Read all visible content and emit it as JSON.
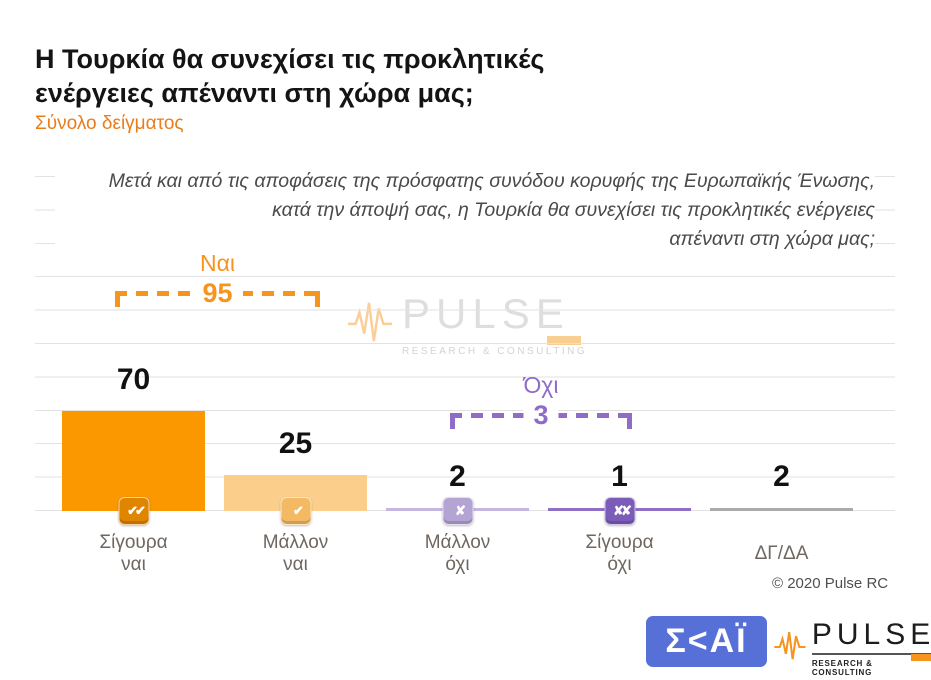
{
  "header": {
    "title_line1": "Η Τουρκία θα συνεχίσει τις προκλητικές",
    "title_line2": "ενέργειες απέναντι στη χώρα μας;",
    "subtitle": "Σύνολο δείγματος"
  },
  "question": {
    "line1": "Μετά και από τις αποφάσεις της πρόσφατης συνόδου κορυφής της Ευρωπαϊκής Ένωσης,",
    "line2": "κατά την άποψή σας, η Τουρκία θα συνεχίσει τις προκλητικές ενέργειες",
    "line3": "απέναντι στη χώρα μας;"
  },
  "chart_data": {
    "type": "bar",
    "title": "Η Τουρκία θα συνεχίσει τις προκλητικές ενέργειες απέναντι στη χώρα μας;",
    "subtitle": "Σύνολο δείγματος",
    "categories": [
      "Σίγουρα ναι",
      "Μάλλον ναι",
      "Μάλλον όχι",
      "Σίγουρα όχι",
      "ΔΓ/ΔΑ"
    ],
    "values": [
      70,
      25,
      2,
      1,
      2
    ],
    "ylim": [
      0,
      100
    ],
    "grid": true,
    "legend": "none",
    "bars": [
      {
        "label_line1": "Σίγουρα",
        "label_line2": "ναι",
        "value": 70,
        "color": "#FB9800",
        "icon_name": "double-check-icon",
        "icon_glyph": "✔✔",
        "icon_bg": "#E08500"
      },
      {
        "label_line1": "Μάλλον",
        "label_line2": "ναι",
        "value": 25,
        "color": "#FBCF8B",
        "icon_name": "check-icon",
        "icon_glyph": "✔",
        "icon_bg": "#F3BA63"
      },
      {
        "label_line1": "Μάλλον",
        "label_line2": "όχι",
        "value": 2,
        "color": "#C5B7DF",
        "icon_name": "x-icon",
        "icon_glyph": "✘",
        "icon_bg": "#B3A4D4"
      },
      {
        "label_line1": "Σίγουρα",
        "label_line2": "όχι",
        "value": 1,
        "color": "#8F6FC5",
        "icon_name": "double-x-icon",
        "icon_glyph": "✘✘",
        "icon_bg": "#7B5CB8"
      },
      {
        "label_line1": "ΔΓ/ΔΑ",
        "label_line2": "",
        "value": 2,
        "color": "#ABABAB",
        "icon_name": "",
        "icon_glyph": "",
        "icon_bg": ""
      }
    ],
    "brackets": [
      {
        "label": "Ναι",
        "value": "95",
        "color": "#F7941D"
      },
      {
        "label": "Όχι",
        "value": "3",
        "color": "#8E6CC8"
      }
    ]
  },
  "colors": {
    "accent_orange": "#F7941D",
    "accent_purple": "#8E6CC8",
    "subtitle_orange": "#E87D1A",
    "skai_blue": "#5670D8"
  },
  "watermark": {
    "brand": "PULSE",
    "tagline": "RESEARCH & CONSULTING"
  },
  "footer": {
    "copyright": "© 2020 Pulse RC",
    "skai_logo_text": "Σ<ΑΪ",
    "pulse_brand": "PULSE",
    "pulse_tagline": "RESEARCH & CONSULTING"
  }
}
